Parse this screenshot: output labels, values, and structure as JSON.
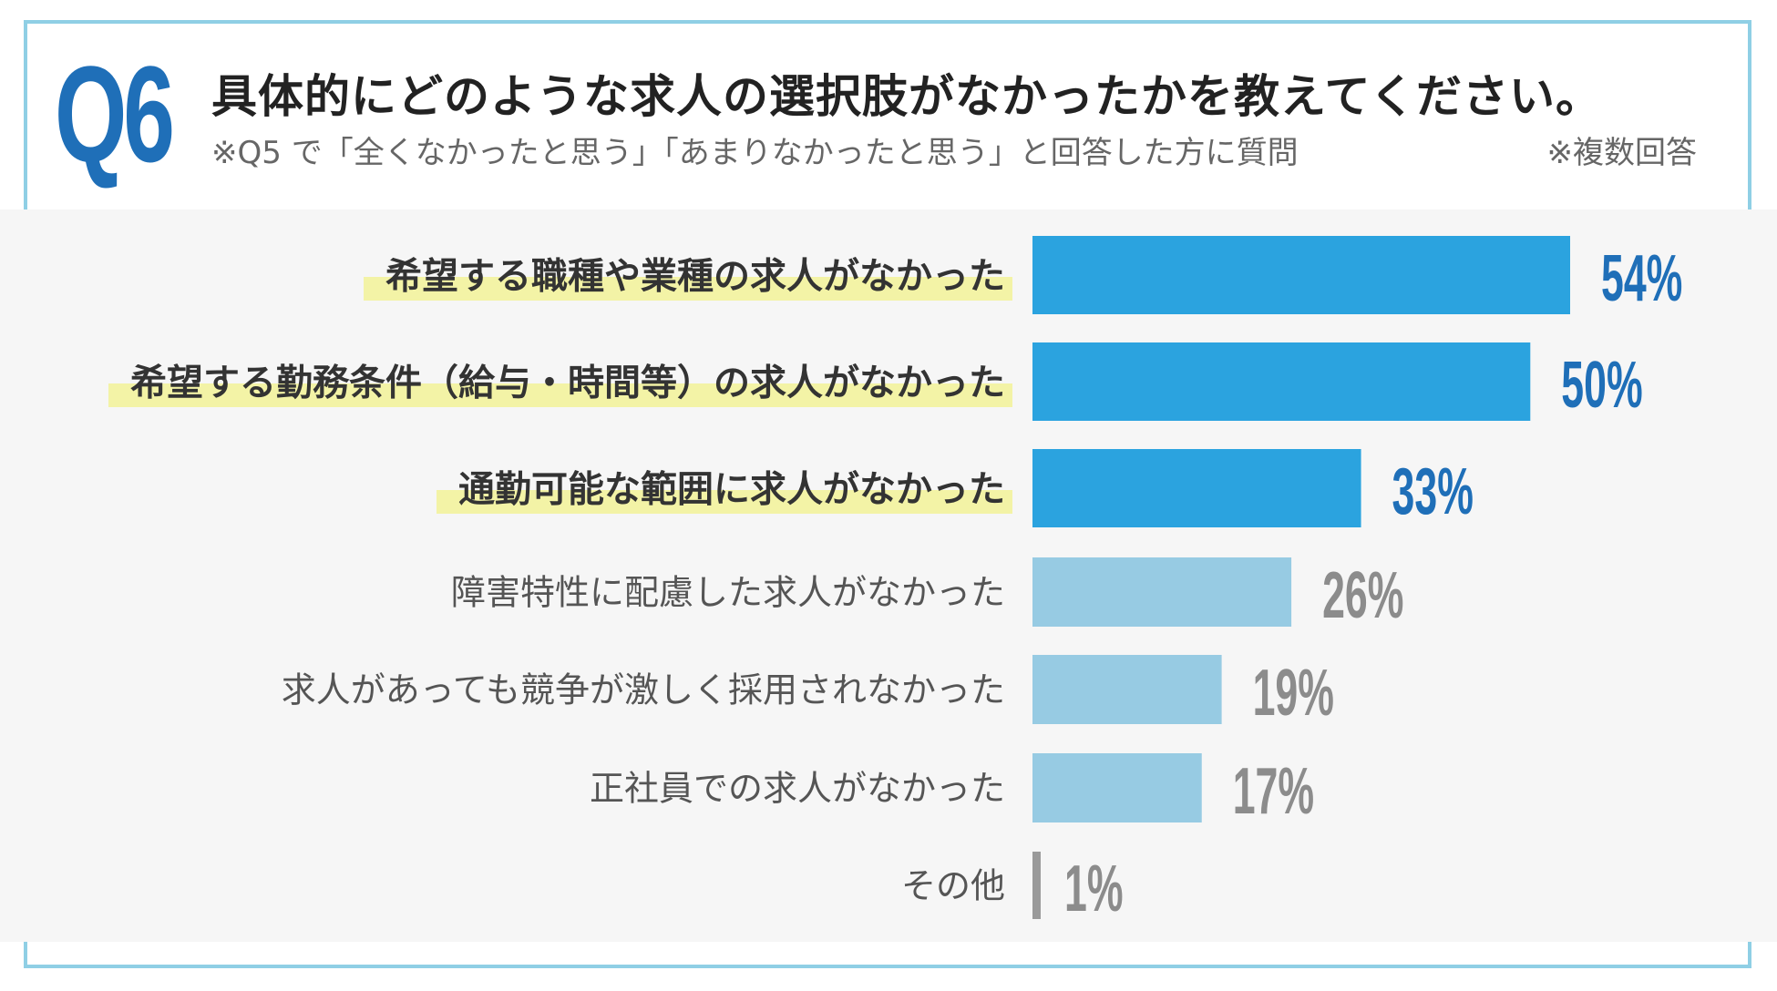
{
  "header": {
    "badge": "Q6",
    "question": "具体的にどのような求人の選択肢がなかったかを教えてください。",
    "note": "※Q5 で「全くなかったと思う」「あまりなかったと思う」と回答した方に質問",
    "multi_answer": "※複数回答"
  },
  "colors": {
    "frame": "#8fcfe5",
    "badge": "#1f6fb8",
    "bar_highlight": "#2ba3df",
    "bar_normal": "#97cbe3",
    "value_highlight": "#1f6fb8",
    "value_normal": "#8c8c8c",
    "bar_other": "#9a9a9a",
    "label_highlight_bg": "#f3f3a6"
  },
  "chart_data": {
    "type": "bar",
    "orientation": "horizontal",
    "categories": [
      "希望する職種や業種の求人がなかった",
      "希望する勤務条件（給与・時間等）の求人がなかった",
      "通勤可能な範囲に求人がなかった",
      "障害特性に配慮した求人がなかった",
      "求人があっても競争が激しく採用されなかった",
      "正社員での求人がなかった",
      "その他"
    ],
    "values": [
      54,
      50,
      33,
      26,
      19,
      17,
      1
    ],
    "value_labels": [
      "54%",
      "50%",
      "33%",
      "26%",
      "19%",
      "17%",
      "1%"
    ],
    "highlighted": [
      true,
      true,
      true,
      false,
      false,
      false,
      false
    ],
    "unit": "%",
    "xlim": [
      0,
      54
    ],
    "grid": false,
    "legend": "none"
  }
}
